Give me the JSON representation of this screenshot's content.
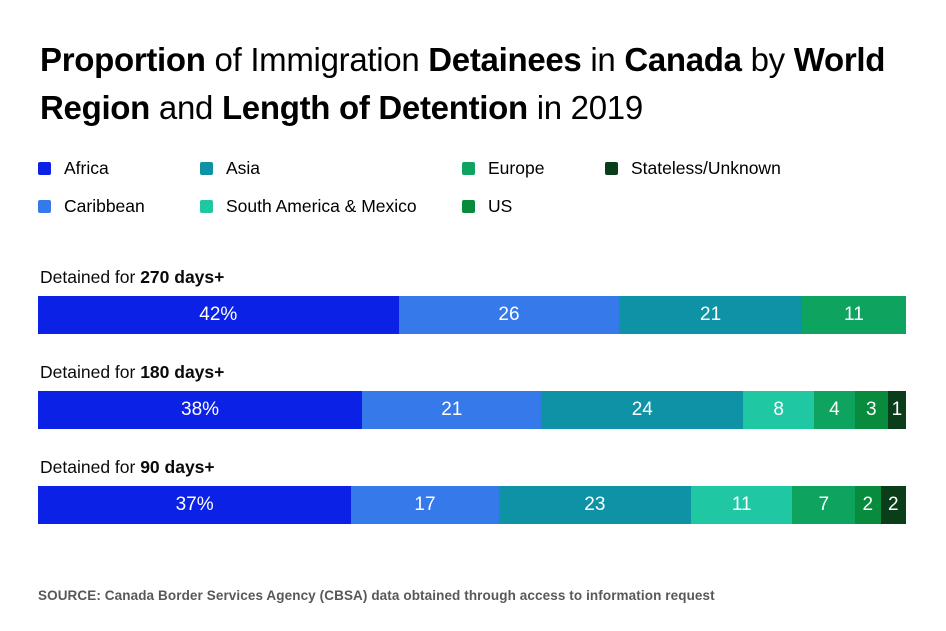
{
  "title": {
    "segments": [
      {
        "text": "Proportion",
        "bold": true
      },
      {
        "text": " of Immigration ",
        "bold": false
      },
      {
        "text": "Detainees",
        "bold": true
      },
      {
        "text": " in ",
        "bold": false
      },
      {
        "text": "Canada",
        "bold": true
      },
      {
        "text": " by ",
        "bold": false
      },
      {
        "text": "World Region",
        "bold": true
      },
      {
        "text": " and ",
        "bold": false
      },
      {
        "text": "Length of Detention",
        "bold": true
      },
      {
        "text": " in 2019",
        "bold": false
      }
    ]
  },
  "legend": {
    "items": [
      "Africa",
      "Asia",
      "Europe",
      "Stateless/Unknown",
      "Caribbean",
      "South America & Mexico",
      "US"
    ]
  },
  "chart_data": {
    "type": "bar",
    "orientation": "horizontal",
    "stacked": true,
    "unit": "percent",
    "grid": false,
    "legend_position": "top",
    "categories": [
      {
        "prefix": "Detained for ",
        "bold": "270 days+"
      },
      {
        "prefix": "Detained for ",
        "bold": "180 days+"
      },
      {
        "prefix": "Detained for ",
        "bold": "90 days+"
      }
    ],
    "series": [
      {
        "name": "Africa",
        "color": "#0b21e6",
        "values": [
          42,
          38,
          37
        ]
      },
      {
        "name": "Caribbean",
        "color": "#3679ea",
        "values": [
          26,
          21,
          17
        ]
      },
      {
        "name": "Asia",
        "color": "#0e93a6",
        "values": [
          21,
          24,
          23
        ]
      },
      {
        "name": "South America & Mexico",
        "color": "#1fc8a3",
        "values": [
          0,
          8,
          11
        ]
      },
      {
        "name": "Europe",
        "color": "#0ea45f",
        "values": [
          11,
          4,
          7
        ]
      },
      {
        "name": "US",
        "color": "#098b3d",
        "values": [
          0,
          3,
          2
        ]
      },
      {
        "name": "Stateless/Unknown",
        "color": "#0a3d1a",
        "values": [
          0,
          1,
          2
        ]
      }
    ],
    "segment_labels": [
      [
        "42%",
        "26",
        "21",
        "11"
      ],
      [
        "38%",
        "21",
        "24",
        "8",
        "4",
        "3",
        "1"
      ],
      [
        "37%",
        "17",
        "23",
        "11",
        "7",
        "2",
        "2"
      ]
    ]
  },
  "source": {
    "text": "SOURCE: Canada Border Services Agency (CBSA) data obtained through access to information request"
  }
}
